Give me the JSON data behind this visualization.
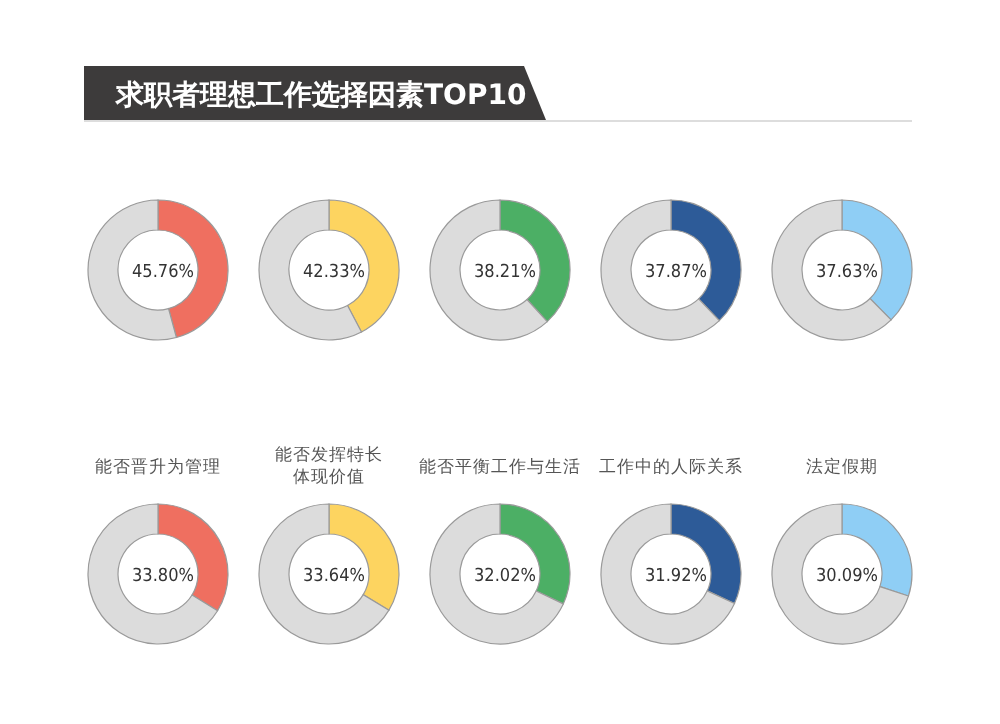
{
  "chart_data": [
    {
      "type": "other",
      "title": "求职者理想工作选择因素TOP10"
    },
    {
      "type": "donut",
      "categories": [
        null,
        null
      ],
      "values": [
        45.76,
        54.24
      ],
      "colors": [
        "#ef6f60",
        "#dcdcdc"
      ],
      "value_labels": [
        "45.76%",
        null
      ]
    },
    {
      "type": "donut",
      "categories": [
        null,
        null
      ],
      "values": [
        42.33,
        57.67
      ],
      "colors": [
        "#fdd460",
        "#dcdcdc"
      ],
      "value_labels": [
        "42.33%",
        null
      ]
    },
    {
      "type": "donut",
      "categories": [
        null,
        null
      ],
      "values": [
        38.21,
        61.79
      ],
      "colors": [
        "#4caf65",
        "#dcdcdc"
      ],
      "value_labels": [
        "38.21%",
        null
      ]
    },
    {
      "type": "donut",
      "categories": [
        null,
        null
      ],
      "values": [
        37.87,
        62.13
      ],
      "colors": [
        "#2d5b98",
        "#dcdcdc"
      ],
      "value_labels": [
        "37.87%",
        null
      ]
    },
    {
      "type": "donut",
      "categories": [
        null,
        null
      ],
      "values": [
        37.63,
        62.37
      ],
      "colors": [
        "#8fcef5",
        "#dcdcdc"
      ],
      "value_labels": [
        "37.63%",
        null
      ]
    },
    {
      "type": "donut",
      "title": "能否晋升为管理",
      "categories": [
        null,
        null
      ],
      "values": [
        33.8,
        66.2
      ],
      "colors": [
        "#ef6f60",
        "#dcdcdc"
      ],
      "value_labels": [
        "33.80%",
        null
      ]
    },
    {
      "type": "donut",
      "title": "能否发挥特长体现价值",
      "categories": [
        null,
        null
      ],
      "values": [
        33.64,
        66.36
      ],
      "colors": [
        "#fdd460",
        "#dcdcdc"
      ],
      "value_labels": [
        "33.64%",
        null
      ]
    },
    {
      "type": "donut",
      "title": "能否平衡工作与生活",
      "categories": [
        null,
        null
      ],
      "values": [
        32.02,
        67.98
      ],
      "colors": [
        "#4caf65",
        "#dcdcdc"
      ],
      "value_labels": [
        "32.02%",
        null
      ]
    },
    {
      "type": "donut",
      "title": "工作中的人际关系",
      "categories": [
        null,
        null
      ],
      "values": [
        31.92,
        68.08
      ],
      "colors": [
        "#2d5b98",
        "#dcdcdc"
      ],
      "value_labels": [
        "31.92%",
        null
      ]
    },
    {
      "type": "donut",
      "title": "法定假期",
      "categories": [
        null,
        null
      ],
      "values": [
        30.09,
        69.91
      ],
      "colors": [
        "#8fcef5",
        "#dcdcdc"
      ],
      "value_labels": [
        "30.09%",
        null
      ]
    }
  ]
}
